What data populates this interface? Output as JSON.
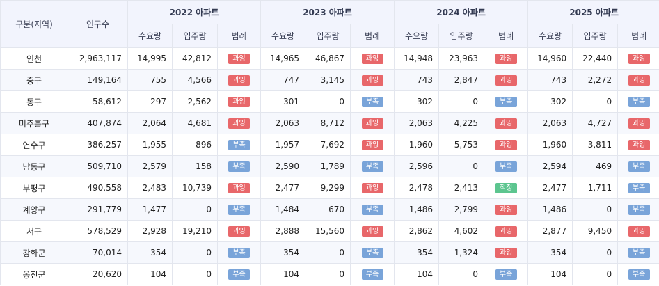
{
  "colors": {
    "over": "#e8676a",
    "short": "#79a4d9",
    "ok": "#5cc58f",
    "header_bg": "#f2f4fd"
  },
  "headers": {
    "region": "구분(지역)",
    "population": "인구수",
    "years": [
      "2022 아파트",
      "2023 아파트",
      "2024 아파트",
      "2025 아파트"
    ],
    "sub": {
      "demand": "수요량",
      "supply": "입주량",
      "legend": "범례"
    }
  },
  "legend_labels": {
    "over": "과잉",
    "short": "부족",
    "ok": "적정"
  },
  "rows": [
    {
      "region": "인천",
      "population": "2,963,117",
      "years": [
        {
          "demand": "14,995",
          "supply": "42,812",
          "legend": "과잉",
          "status": "over"
        },
        {
          "demand": "14,965",
          "supply": "46,867",
          "legend": "과잉",
          "status": "over"
        },
        {
          "demand": "14,948",
          "supply": "23,963",
          "legend": "과잉",
          "status": "over"
        },
        {
          "demand": "14,960",
          "supply": "22,440",
          "legend": "과잉",
          "status": "over"
        }
      ]
    },
    {
      "region": "중구",
      "population": "149,164",
      "years": [
        {
          "demand": "755",
          "supply": "4,566",
          "legend": "과잉",
          "status": "over"
        },
        {
          "demand": "747",
          "supply": "3,145",
          "legend": "과잉",
          "status": "over"
        },
        {
          "demand": "743",
          "supply": "2,847",
          "legend": "과잉",
          "status": "over"
        },
        {
          "demand": "743",
          "supply": "2,272",
          "legend": "과잉",
          "status": "over"
        }
      ]
    },
    {
      "region": "동구",
      "population": "58,612",
      "years": [
        {
          "demand": "297",
          "supply": "2,562",
          "legend": "과잉",
          "status": "over"
        },
        {
          "demand": "301",
          "supply": "0",
          "legend": "부족",
          "status": "short"
        },
        {
          "demand": "302",
          "supply": "0",
          "legend": "부족",
          "status": "short"
        },
        {
          "demand": "302",
          "supply": "0",
          "legend": "부족",
          "status": "short"
        }
      ]
    },
    {
      "region": "미추홀구",
      "population": "407,874",
      "years": [
        {
          "demand": "2,064",
          "supply": "4,681",
          "legend": "과잉",
          "status": "over"
        },
        {
          "demand": "2,063",
          "supply": "8,712",
          "legend": "과잉",
          "status": "over"
        },
        {
          "demand": "2,063",
          "supply": "4,225",
          "legend": "과잉",
          "status": "over"
        },
        {
          "demand": "2,063",
          "supply": "4,727",
          "legend": "과잉",
          "status": "over"
        }
      ]
    },
    {
      "region": "연수구",
      "population": "386,257",
      "years": [
        {
          "demand": "1,955",
          "supply": "896",
          "legend": "부족",
          "status": "short"
        },
        {
          "demand": "1,957",
          "supply": "7,692",
          "legend": "과잉",
          "status": "over"
        },
        {
          "demand": "1,960",
          "supply": "5,753",
          "legend": "과잉",
          "status": "over"
        },
        {
          "demand": "1,960",
          "supply": "3,811",
          "legend": "과잉",
          "status": "over"
        }
      ]
    },
    {
      "region": "남동구",
      "population": "509,710",
      "years": [
        {
          "demand": "2,579",
          "supply": "158",
          "legend": "부족",
          "status": "short"
        },
        {
          "demand": "2,590",
          "supply": "1,789",
          "legend": "부족",
          "status": "short"
        },
        {
          "demand": "2,596",
          "supply": "0",
          "legend": "부족",
          "status": "short"
        },
        {
          "demand": "2,594",
          "supply": "469",
          "legend": "부족",
          "status": "short"
        }
      ]
    },
    {
      "region": "부평구",
      "population": "490,558",
      "years": [
        {
          "demand": "2,483",
          "supply": "10,739",
          "legend": "과잉",
          "status": "over"
        },
        {
          "demand": "2,477",
          "supply": "9,299",
          "legend": "과잉",
          "status": "over"
        },
        {
          "demand": "2,478",
          "supply": "2,413",
          "legend": "적정",
          "status": "ok"
        },
        {
          "demand": "2,477",
          "supply": "1,711",
          "legend": "부족",
          "status": "short"
        }
      ]
    },
    {
      "region": "계양구",
      "population": "291,779",
      "years": [
        {
          "demand": "1,477",
          "supply": "0",
          "legend": "부족",
          "status": "short"
        },
        {
          "demand": "1,484",
          "supply": "670",
          "legend": "부족",
          "status": "short"
        },
        {
          "demand": "1,486",
          "supply": "2,799",
          "legend": "과잉",
          "status": "over"
        },
        {
          "demand": "1,486",
          "supply": "0",
          "legend": "부족",
          "status": "short"
        }
      ]
    },
    {
      "region": "서구",
      "population": "578,529",
      "years": [
        {
          "demand": "2,928",
          "supply": "19,210",
          "legend": "과잉",
          "status": "over"
        },
        {
          "demand": "2,888",
          "supply": "15,560",
          "legend": "과잉",
          "status": "over"
        },
        {
          "demand": "2,862",
          "supply": "4,602",
          "legend": "과잉",
          "status": "over"
        },
        {
          "demand": "2,877",
          "supply": "9,450",
          "legend": "과잉",
          "status": "over"
        }
      ]
    },
    {
      "region": "강화군",
      "population": "70,014",
      "years": [
        {
          "demand": "354",
          "supply": "0",
          "legend": "부족",
          "status": "short"
        },
        {
          "demand": "354",
          "supply": "0",
          "legend": "부족",
          "status": "short"
        },
        {
          "demand": "354",
          "supply": "1,324",
          "legend": "과잉",
          "status": "over"
        },
        {
          "demand": "354",
          "supply": "0",
          "legend": "부족",
          "status": "short"
        }
      ]
    },
    {
      "region": "옹진군",
      "population": "20,620",
      "years": [
        {
          "demand": "104",
          "supply": "0",
          "legend": "부족",
          "status": "short"
        },
        {
          "demand": "104",
          "supply": "0",
          "legend": "부족",
          "status": "short"
        },
        {
          "demand": "104",
          "supply": "0",
          "legend": "부족",
          "status": "short"
        },
        {
          "demand": "104",
          "supply": "0",
          "legend": "부족",
          "status": "short"
        }
      ]
    }
  ]
}
